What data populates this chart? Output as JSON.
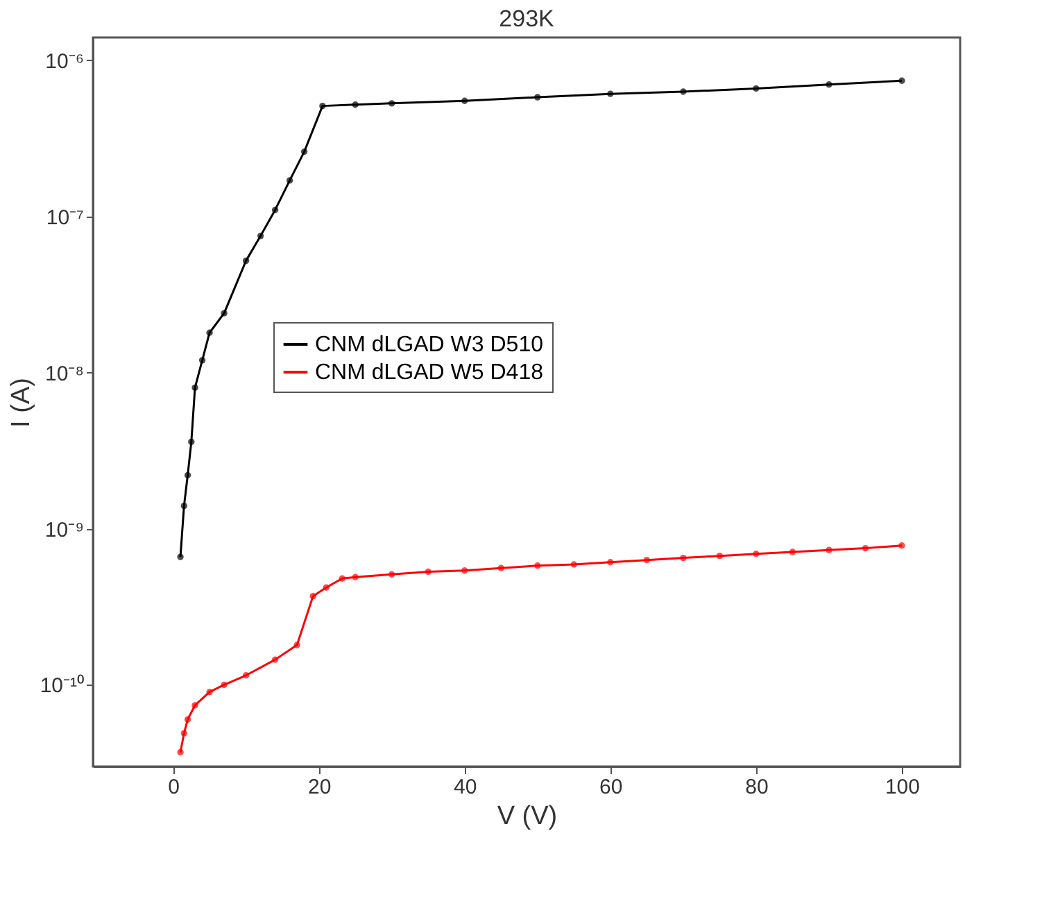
{
  "chart_data": {
    "type": "line",
    "title": "293K",
    "xlabel": "V (V)",
    "ylabel": "I (A)",
    "log": "y",
    "grid": false,
    "legend": "left",
    "marker": "circle",
    "line_style": "solid",
    "xlim": [
      -11,
      108
    ],
    "xticks": [
      0,
      20,
      40,
      60,
      80,
      100
    ],
    "ylim": [
      3e-11,
      1.4e-06
    ],
    "yticks": [
      {
        "value": 1e-10,
        "label": "10⁻¹⁰"
      },
      {
        "value": 1e-09,
        "label": "10⁻⁹"
      },
      {
        "value": 1e-08,
        "label": "10⁻⁸"
      },
      {
        "value": 1e-07,
        "label": "10⁻⁷"
      },
      {
        "value": 1e-06,
        "label": "10⁻⁶"
      }
    ],
    "series": [
      {
        "name": "CNM dLGAD W3 D510",
        "color": "#000000",
        "x": [
          1,
          1.5,
          2,
          2.5,
          3,
          4,
          5,
          7,
          10,
          12,
          14,
          16,
          18,
          20.5,
          25,
          30,
          40,
          50,
          60,
          70,
          80,
          90,
          100
        ],
        "values": [
          6.6e-10,
          1.4e-09,
          2.2e-09,
          3.6e-09,
          8e-09,
          1.2e-08,
          1.8e-08,
          2.4e-08,
          5.2e-08,
          7.5e-08,
          1.1e-07,
          1.7e-07,
          2.6e-07,
          5.1e-07,
          5.2e-07,
          5.3e-07,
          5.5e-07,
          5.8e-07,
          6.1e-07,
          6.3e-07,
          6.6e-07,
          7e-07,
          7.4e-07
        ]
      },
      {
        "name": "CNM dLGAD W5 D418",
        "color": "#ff0000",
        "x": [
          1,
          1.5,
          2,
          3,
          5,
          7,
          10,
          14,
          17,
          19.2,
          21,
          23.2,
          25,
          30,
          35,
          40,
          45,
          50,
          55,
          60,
          65,
          70,
          75,
          80,
          85,
          90,
          95,
          100
        ],
        "values": [
          3.7e-11,
          4.9e-11,
          6e-11,
          7.4e-11,
          9e-11,
          1e-10,
          1.15e-10,
          1.45e-10,
          1.8e-10,
          3.7e-10,
          4.2e-10,
          4.8e-10,
          4.9e-10,
          5.1e-10,
          5.3e-10,
          5.4e-10,
          5.6e-10,
          5.8e-10,
          5.9e-10,
          6.1e-10,
          6.3e-10,
          6.5e-10,
          6.7e-10,
          6.9e-10,
          7.1e-10,
          7.3e-10,
          7.5e-10,
          7.8e-10
        ]
      }
    ]
  }
}
